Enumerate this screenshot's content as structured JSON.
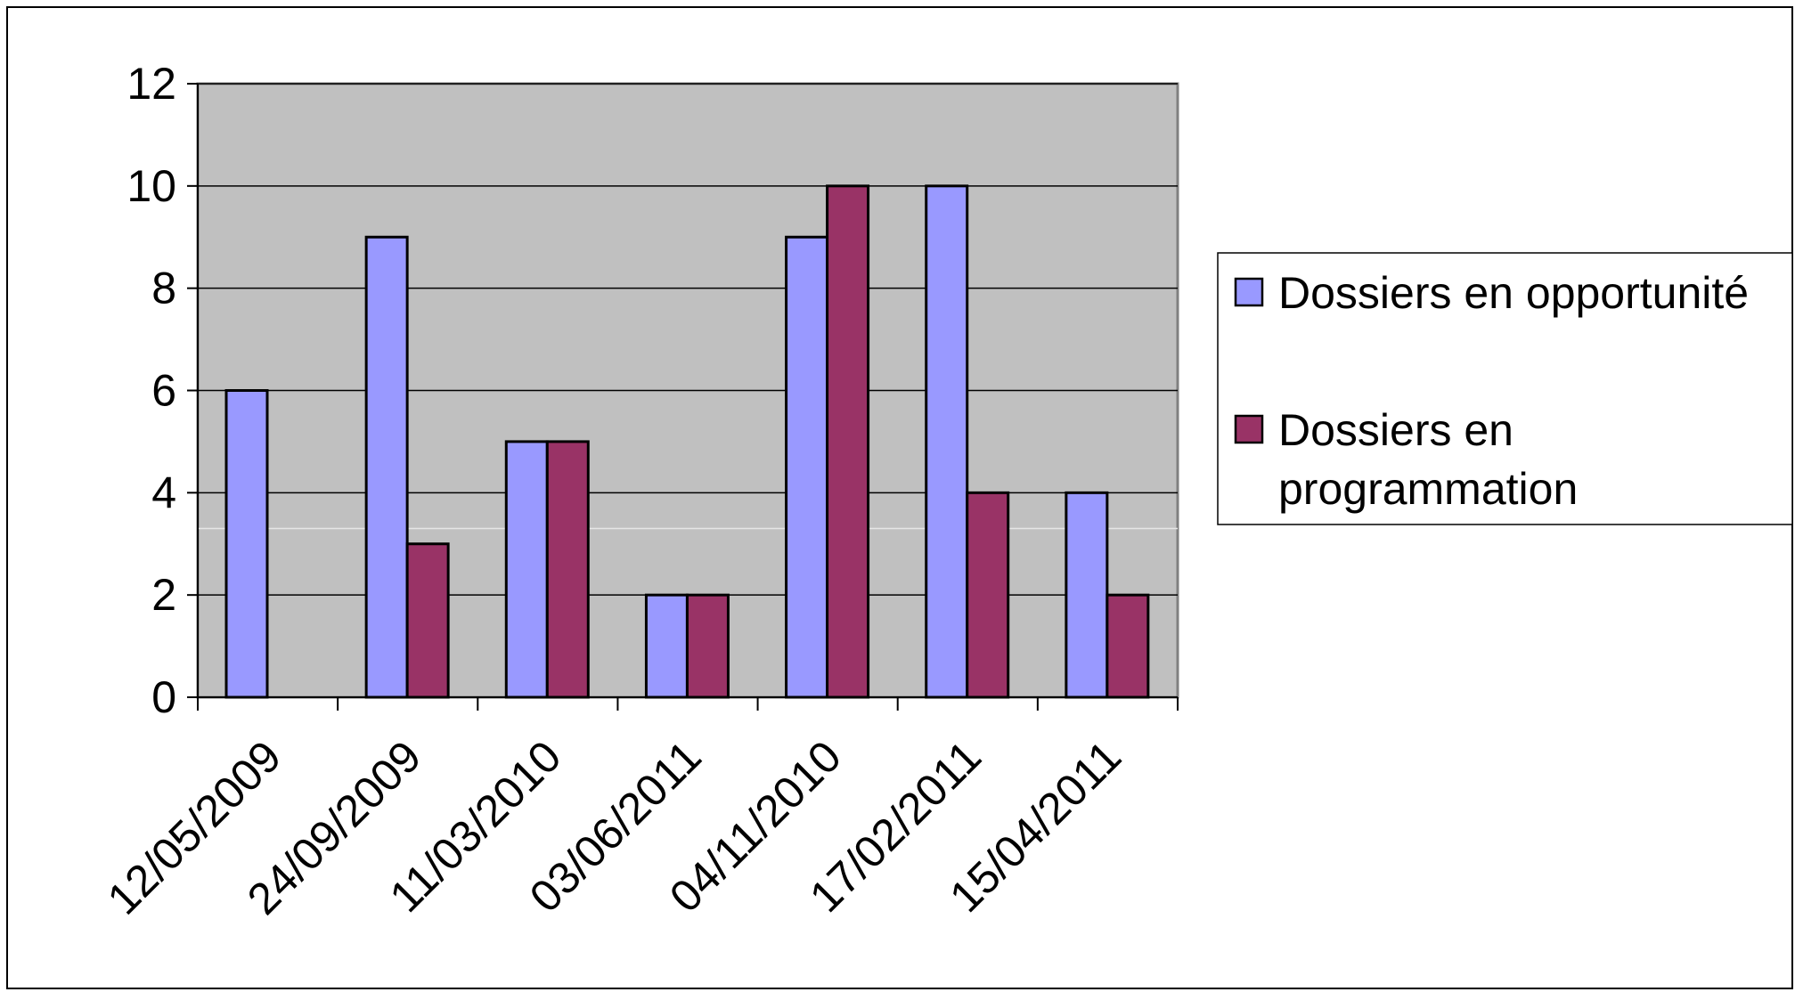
{
  "chart_data": {
    "type": "bar",
    "categories": [
      "12/05/2009",
      "24/09/2009",
      "11/03/2010",
      "03/06/2011",
      "04/11/2010",
      "17/02/2011",
      "15/04/2011"
    ],
    "series": [
      {
        "name": "Dossiers en opportunité",
        "values": [
          6,
          9,
          5,
          2,
          9,
          10,
          4
        ],
        "color": "#9999ff"
      },
      {
        "name": "Dossiers en programmation",
        "values": [
          null,
          3,
          5,
          2,
          10,
          4,
          2
        ],
        "color": "#993366"
      }
    ],
    "ylim": [
      0,
      12
    ],
    "yticks": [
      0,
      2,
      4,
      6,
      8,
      10,
      12
    ],
    "grid": true,
    "plot_background": "#c0c0c0",
    "legend_position": "right",
    "legend_lines": [
      [
        "Dossiers en opportunité"
      ],
      [
        "Dossiers en",
        "programmation"
      ]
    ]
  }
}
